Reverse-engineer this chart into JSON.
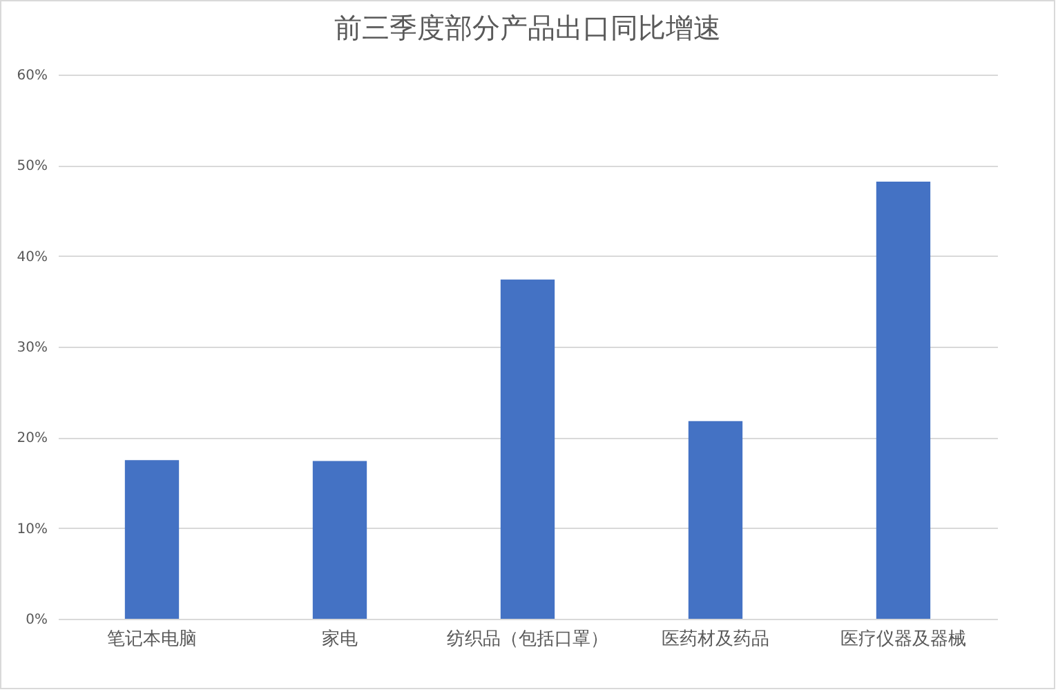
{
  "chart_data": {
    "type": "bar",
    "title": "前三季度部分产品出口同比增速",
    "categories": [
      "笔记本电脑",
      "家电",
      "纺织品（包括口罩）",
      "医药材及药品",
      "医疗仪器及器械"
    ],
    "values": [
      17.5,
      17.4,
      37.4,
      21.8,
      48.2
    ],
    "color": "#4472c4",
    "ylim": [
      0,
      60
    ],
    "yticks": [
      {
        "value": 0,
        "label": "0%"
      },
      {
        "value": 10,
        "label": "10%"
      },
      {
        "value": 20,
        "label": "20%"
      },
      {
        "value": 30,
        "label": "30%"
      },
      {
        "value": 40,
        "label": "40%"
      },
      {
        "value": 50,
        "label": "50%"
      },
      {
        "value": 60,
        "label": "60%"
      }
    ],
    "grid": "y"
  }
}
